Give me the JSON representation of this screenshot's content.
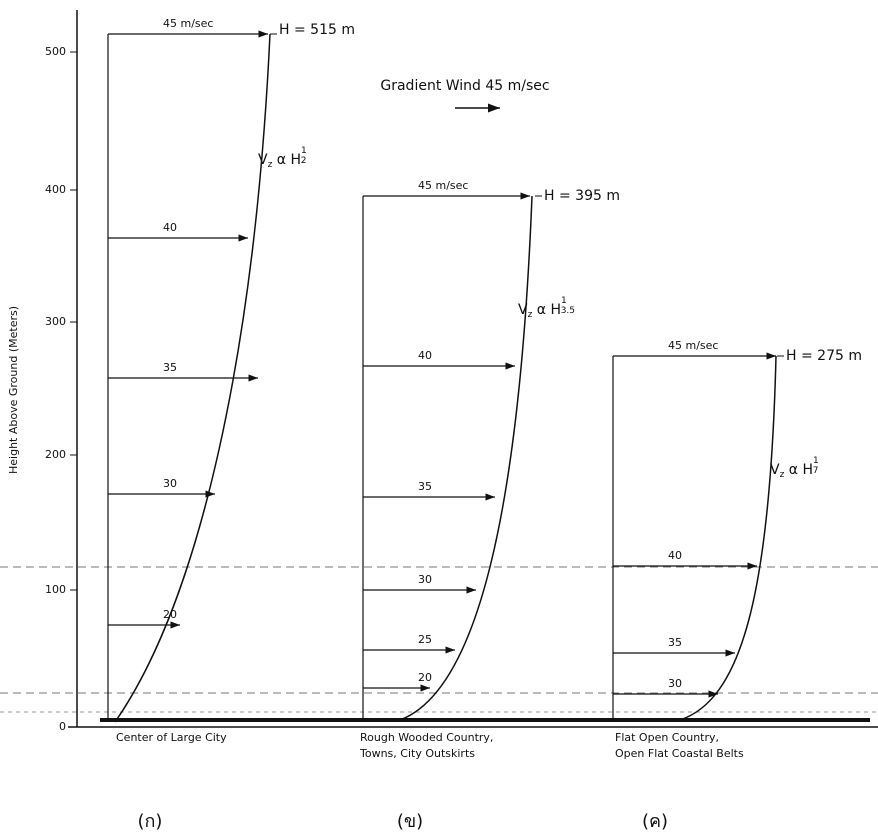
{
  "y_axis": {
    "label": "Height Above Ground (Meters)",
    "ticks": [
      "0",
      "100",
      "200",
      "300",
      "400",
      "500"
    ]
  },
  "gradient_wind": "Gradient Wind 45 m/sec",
  "panels": [
    {
      "top_label": "H = 515 m",
      "formula": {
        "text": "V",
        "sub": "z",
        "rest": " α H",
        "num": "1",
        "den": "2"
      },
      "arrows": [
        "45 m/sec",
        "40",
        "35",
        "30",
        "20"
      ],
      "caption": [
        "Center of Large City"
      ],
      "marker": "(ก)"
    },
    {
      "top_label": "H = 395 m",
      "formula": {
        "text": "V",
        "sub": "z",
        "rest": " α H",
        "num": "1",
        "den": "3.5"
      },
      "arrows": [
        "45 m/sec",
        "40",
        "35",
        "30",
        "25",
        "20"
      ],
      "caption": [
        "Rough Wooded Country,",
        "Towns, City Outskirts"
      ],
      "marker": "(ข)"
    },
    {
      "top_label": "H = 275 m",
      "formula": {
        "text": "V",
        "sub": "z",
        "rest": " α H",
        "num": "1",
        "den": "7"
      },
      "arrows": [
        "45 m/sec",
        "40",
        "35",
        "30"
      ],
      "caption": [
        "Flat Open Country,",
        "Open Flat Coastal Belts"
      ],
      "marker": "(ค)"
    }
  ]
}
